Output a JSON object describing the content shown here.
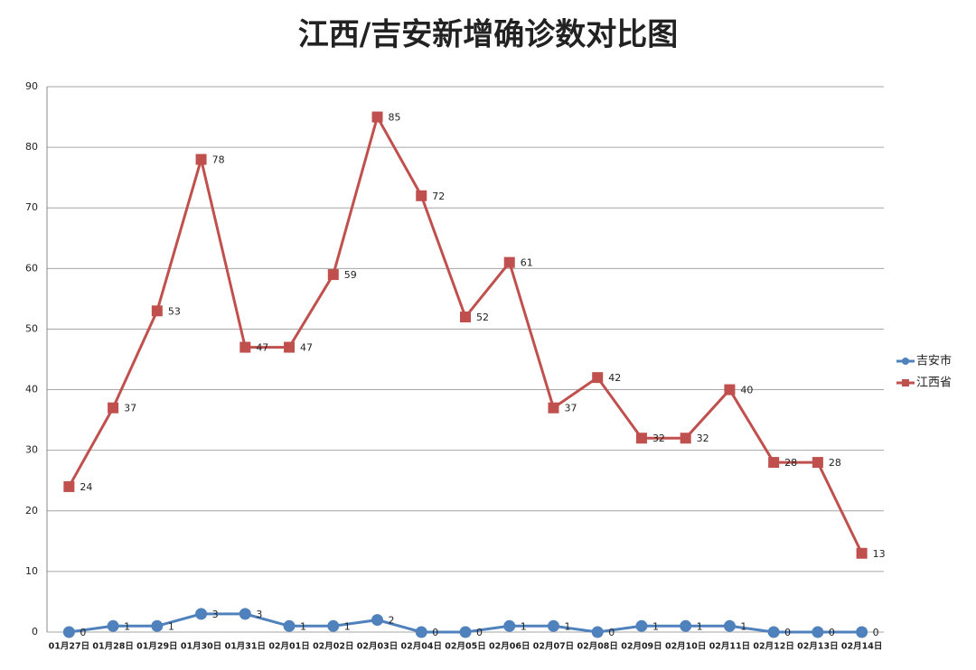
{
  "chart_data": {
    "type": "line",
    "title": "江西/吉安新增确诊数对比图",
    "categories": [
      "01月27日",
      "01月28日",
      "01月29日",
      "01月30日",
      "01月31日",
      "02月01日",
      "02月02日",
      "02月03日",
      "02月04日",
      "02月05日",
      "02月06日",
      "02月07日",
      "02月08日",
      "02月09日",
      "02月10日",
      "02月11日",
      "02月12日",
      "02月13日",
      "02月14日"
    ],
    "series": [
      {
        "name": "吉安市",
        "color": "#4f81bd",
        "marker": "circle",
        "values": [
          0,
          1,
          1,
          3,
          3,
          1,
          1,
          2,
          0,
          0,
          1,
          1,
          0,
          1,
          1,
          1,
          0,
          0,
          0
        ]
      },
      {
        "name": "江西省",
        "color": "#c0504d",
        "marker": "square",
        "values": [
          24,
          37,
          53,
          78,
          47,
          47,
          59,
          85,
          72,
          52,
          61,
          37,
          42,
          32,
          32,
          40,
          28,
          28,
          13
        ]
      }
    ],
    "ylim": [
      0,
      90
    ],
    "yticks": [
      0,
      10,
      20,
      30,
      40,
      50,
      60,
      70,
      80,
      90
    ],
    "grid": true,
    "legend": "right"
  }
}
